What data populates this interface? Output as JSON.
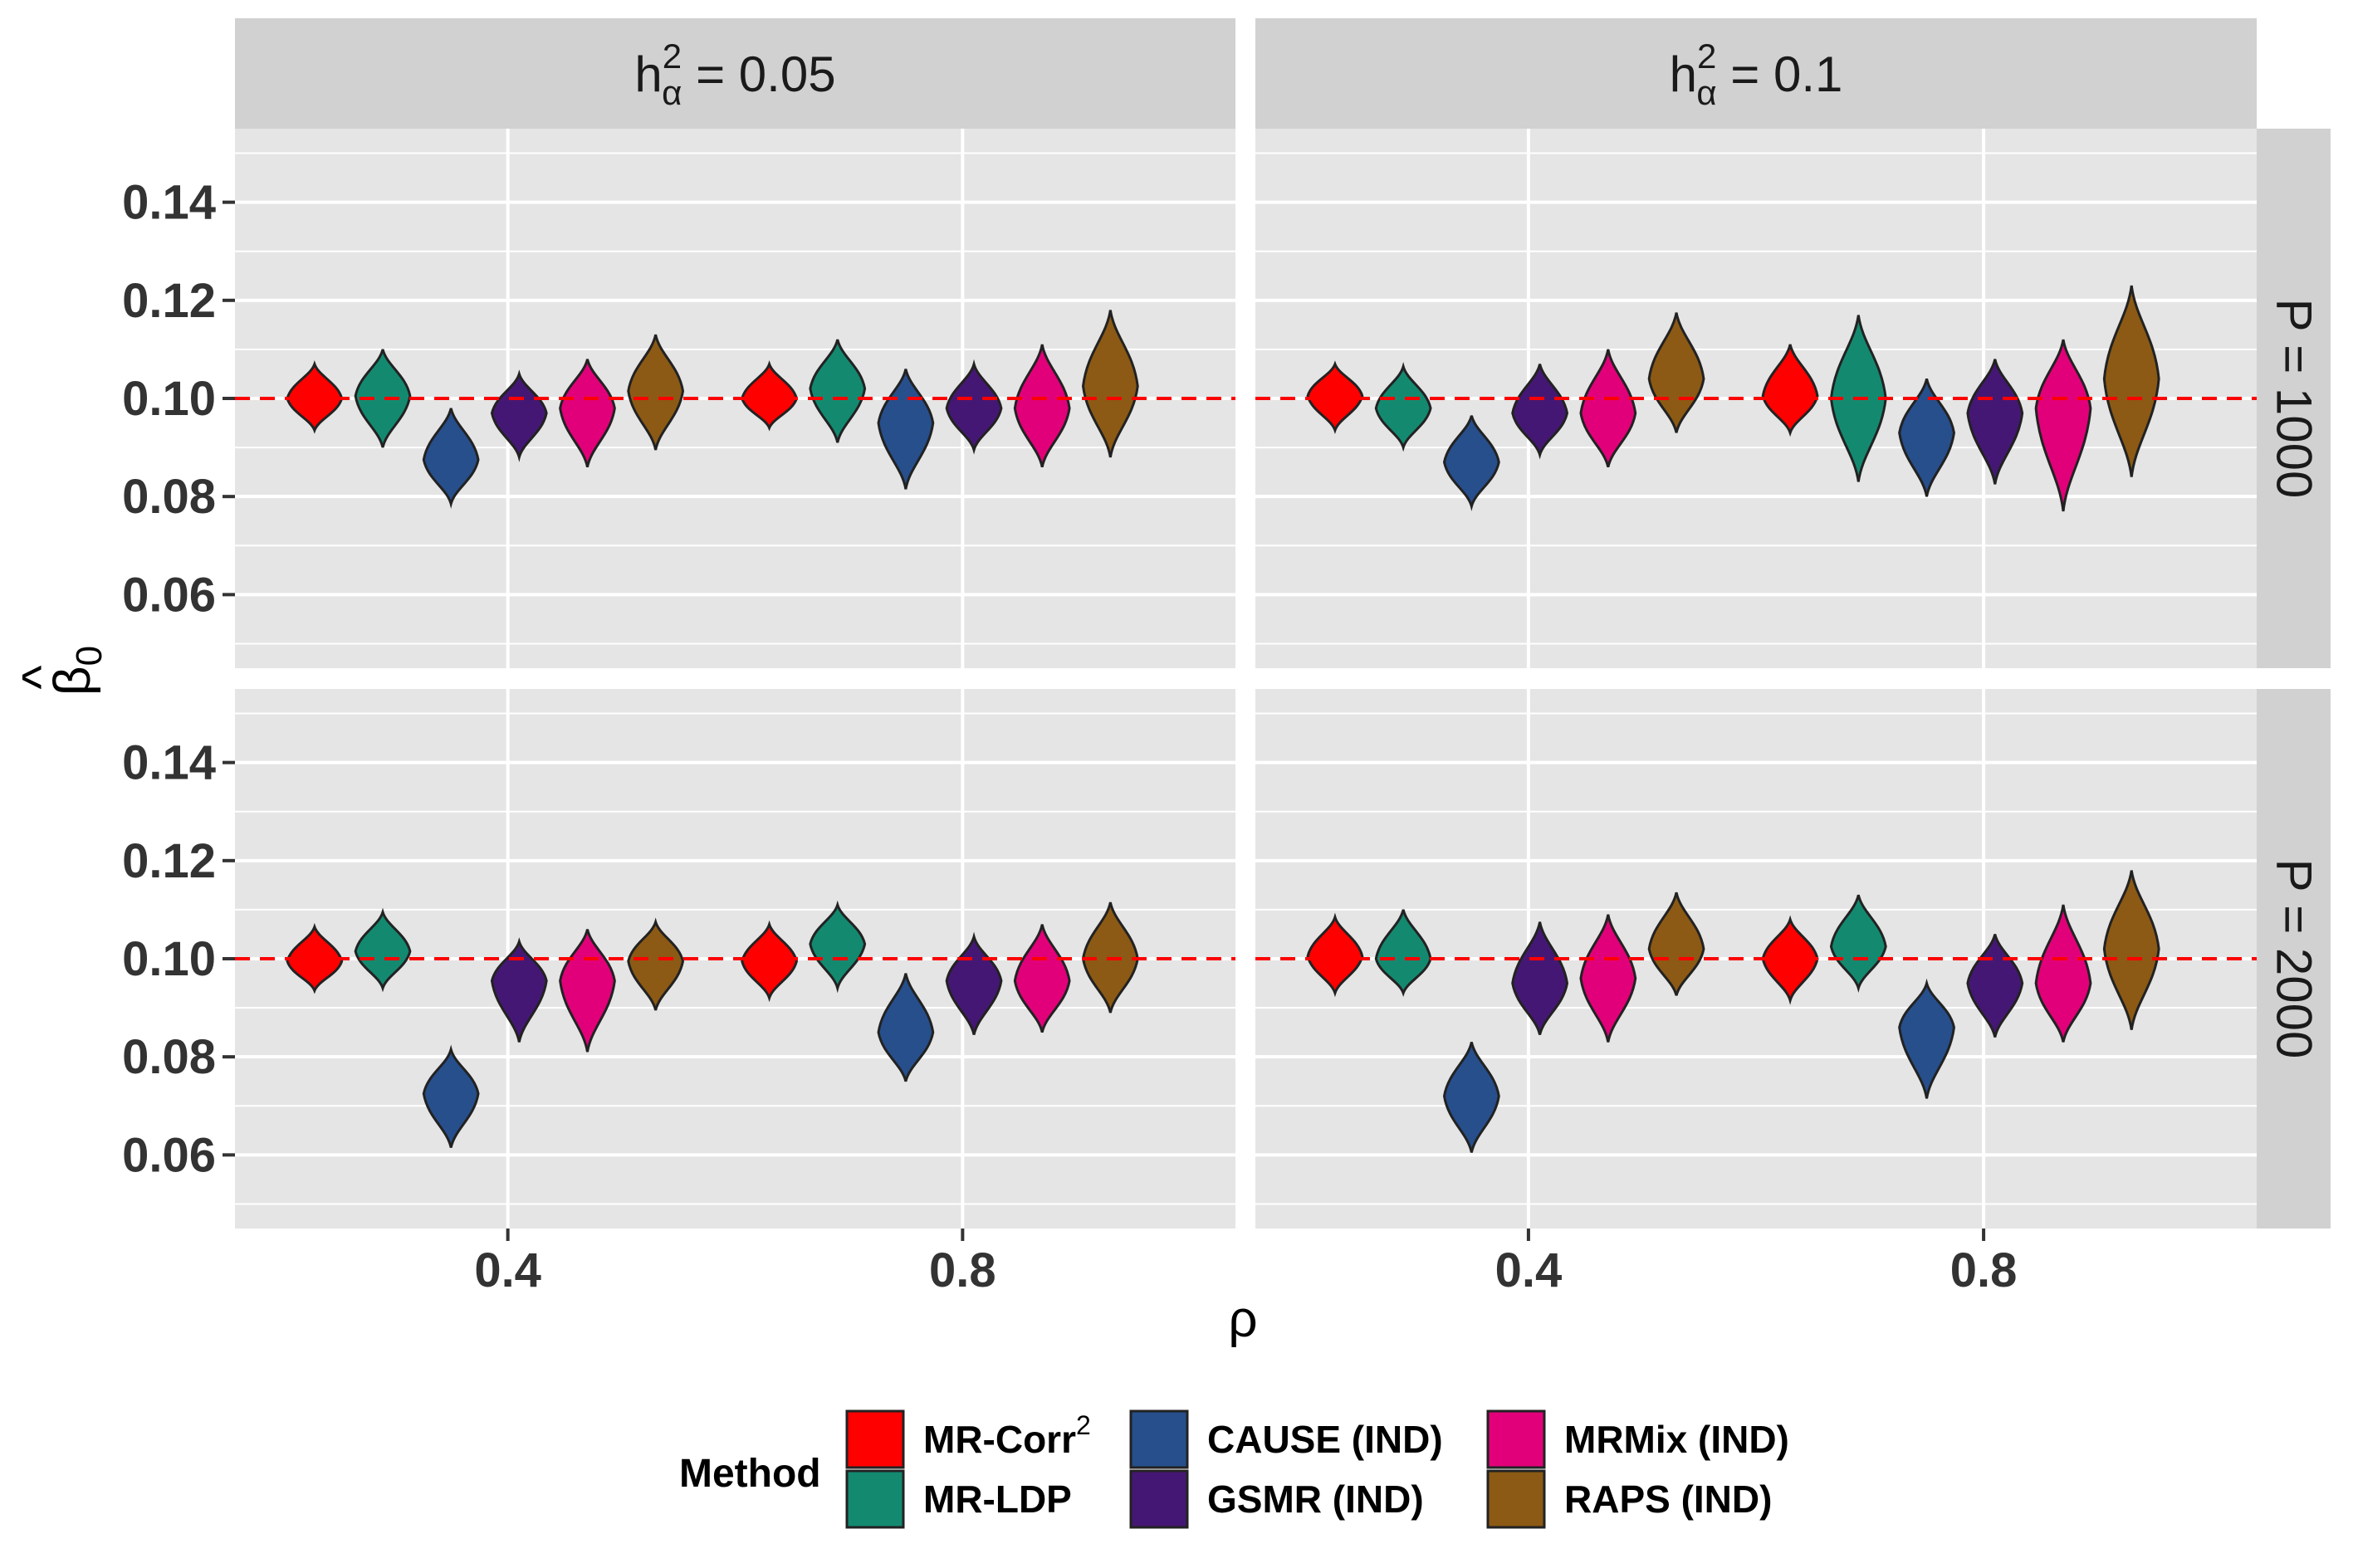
{
  "chart_data": {
    "type": "violin",
    "xlabel": "ρ",
    "ylabel": "β̂0",
    "ylabel_hat": "^",
    "ylabel_base": "β",
    "ylabel_sub": "0",
    "x_ticks": [
      "0.4",
      "0.8"
    ],
    "x_tick_values": [
      0.4,
      0.8
    ],
    "y_ticks": [
      "0.06",
      "0.08",
      "0.10",
      "0.12",
      "0.14"
    ],
    "y_tick_values": [
      0.06,
      0.08,
      0.1,
      0.12,
      0.14
    ],
    "ylim": [
      0.045,
      0.155
    ],
    "xlim": [
      0.16,
      1.04
    ],
    "reference_line": 0.1,
    "reference_color": "#ff0000",
    "col_facets": [
      {
        "prefix": "h",
        "sup": "2",
        "sub": "α",
        "suffix": " = 0.05"
      },
      {
        "prefix": "h",
        "sup": "2",
        "sub": "α",
        "suffix": " = 0.1"
      }
    ],
    "row_facets": [
      "P = 1000",
      "P = 2000"
    ],
    "rho_groups": [
      0.4,
      0.8
    ],
    "legend": {
      "title": "Method",
      "items": [
        {
          "label": "MR-Corr",
          "sup": "2",
          "color": "#ff0000"
        },
        {
          "label": "MR-LDP",
          "sup": "",
          "color": "#138a70"
        },
        {
          "label": "CAUSE (IND)",
          "sup": "",
          "color": "#264f8c"
        },
        {
          "label": "GSMR (IND)",
          "sup": "",
          "color": "#451774"
        },
        {
          "label": "MRMix (IND)",
          "sup": "",
          "color": "#e2007a"
        },
        {
          "label": "RAPS (IND)",
          "sup": "",
          "color": "#8c5a14"
        }
      ]
    },
    "panels": [
      {
        "row": 0,
        "col": 0,
        "violins": [
          [
            {
              "min": 0.0935,
              "mid": 0.1,
              "max": 0.107
            },
            {
              "min": 0.09,
              "mid": 0.1005,
              "max": 0.11
            },
            {
              "min": 0.0785,
              "mid": 0.0875,
              "max": 0.098
            },
            {
              "min": 0.088,
              "mid": 0.097,
              "max": 0.105
            },
            {
              "min": 0.086,
              "mid": 0.098,
              "max": 0.108
            },
            {
              "min": 0.0895,
              "mid": 0.1015,
              "max": 0.113
            }
          ],
          [
            {
              "min": 0.094,
              "mid": 0.1,
              "max": 0.107
            },
            {
              "min": 0.091,
              "mid": 0.102,
              "max": 0.112
            },
            {
              "min": 0.0815,
              "mid": 0.095,
              "max": 0.106
            },
            {
              "min": 0.0895,
              "mid": 0.098,
              "max": 0.107
            },
            {
              "min": 0.086,
              "mid": 0.098,
              "max": 0.111
            },
            {
              "min": 0.088,
              "mid": 0.1025,
              "max": 0.118
            }
          ]
        ]
      },
      {
        "row": 0,
        "col": 1,
        "violins": [
          [
            {
              "min": 0.0935,
              "mid": 0.1005,
              "max": 0.107
            },
            {
              "min": 0.09,
              "mid": 0.098,
              "max": 0.1065
            },
            {
              "min": 0.078,
              "mid": 0.087,
              "max": 0.0965
            },
            {
              "min": 0.0885,
              "mid": 0.097,
              "max": 0.107
            },
            {
              "min": 0.086,
              "mid": 0.097,
              "max": 0.11
            },
            {
              "min": 0.093,
              "mid": 0.104,
              "max": 0.1175
            }
          ],
          [
            {
              "min": 0.093,
              "mid": 0.1005,
              "max": 0.111
            },
            {
              "min": 0.083,
              "mid": 0.1,
              "max": 0.117
            },
            {
              "min": 0.08,
              "mid": 0.093,
              "max": 0.104
            },
            {
              "min": 0.0825,
              "mid": 0.097,
              "max": 0.108
            },
            {
              "min": 0.077,
              "mid": 0.098,
              "max": 0.112
            },
            {
              "min": 0.084,
              "mid": 0.104,
              "max": 0.123
            }
          ]
        ]
      },
      {
        "row": 1,
        "col": 0,
        "violins": [
          [
            {
              "min": 0.0935,
              "mid": 0.0995,
              "max": 0.1065
            },
            {
              "min": 0.094,
              "mid": 0.1015,
              "max": 0.1095
            },
            {
              "min": 0.0615,
              "mid": 0.0725,
              "max": 0.0815
            },
            {
              "min": 0.083,
              "mid": 0.0955,
              "max": 0.1035
            },
            {
              "min": 0.081,
              "mid": 0.0955,
              "max": 0.106
            },
            {
              "min": 0.0895,
              "mid": 0.0995,
              "max": 0.1075
            }
          ],
          [
            {
              "min": 0.092,
              "mid": 0.0995,
              "max": 0.107
            },
            {
              "min": 0.094,
              "mid": 0.103,
              "max": 0.111
            },
            {
              "min": 0.075,
              "mid": 0.085,
              "max": 0.097
            },
            {
              "min": 0.0845,
              "mid": 0.0955,
              "max": 0.1045
            },
            {
              "min": 0.085,
              "mid": 0.0955,
              "max": 0.107
            },
            {
              "min": 0.089,
              "mid": 0.1,
              "max": 0.1115
            }
          ]
        ]
      },
      {
        "row": 1,
        "col": 1,
        "violins": [
          [
            {
              "min": 0.093,
              "mid": 0.1005,
              "max": 0.1085
            },
            {
              "min": 0.093,
              "mid": 0.1,
              "max": 0.11
            },
            {
              "min": 0.0605,
              "mid": 0.072,
              "max": 0.083
            },
            {
              "min": 0.0845,
              "mid": 0.095,
              "max": 0.1075
            },
            {
              "min": 0.083,
              "mid": 0.096,
              "max": 0.109
            },
            {
              "min": 0.0925,
              "mid": 0.102,
              "max": 0.1135
            }
          ],
          [
            {
              "min": 0.0915,
              "mid": 0.1,
              "max": 0.108
            },
            {
              "min": 0.094,
              "mid": 0.1025,
              "max": 0.113
            },
            {
              "min": 0.0715,
              "mid": 0.086,
              "max": 0.095
            },
            {
              "min": 0.084,
              "mid": 0.095,
              "max": 0.105
            },
            {
              "min": 0.083,
              "mid": 0.095,
              "max": 0.111
            },
            {
              "min": 0.0855,
              "mid": 0.102,
              "max": 0.118
            }
          ]
        ]
      }
    ]
  }
}
